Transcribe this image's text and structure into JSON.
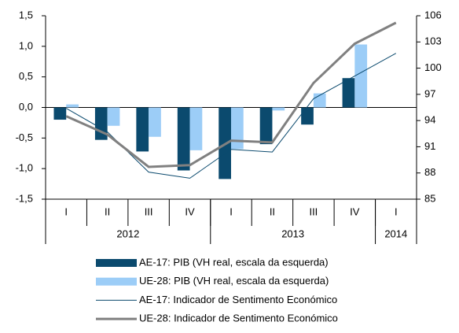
{
  "chart_data": {
    "type": "combo",
    "categories": [
      "I",
      "II",
      "III",
      "IV",
      "I",
      "II",
      "III",
      "IV",
      "I"
    ],
    "groups": [
      {
        "label": "2012",
        "count": 4
      },
      {
        "label": "2013",
        "count": 4
      },
      {
        "label": "2014",
        "count": 1
      }
    ],
    "ylim": [
      -1.5,
      1.5
    ],
    "yticks": [
      {
        "value": -1.5,
        "label": "-1,5"
      },
      {
        "value": -1.0,
        "label": "-1,0"
      },
      {
        "value": -0.5,
        "label": "-0,5"
      },
      {
        "value": 0,
        "label": "0,0"
      },
      {
        "value": 0.5,
        "label": "0,5"
      },
      {
        "value": 1.0,
        "label": "1,0"
      },
      {
        "value": 1.5,
        "label": "1,5"
      }
    ],
    "y2lim": [
      85,
      106
    ],
    "y2ticks": [
      85,
      88,
      91,
      94,
      97,
      100,
      103,
      106
    ],
    "series": [
      {
        "name": "AE-17: PIB (VH real, escala da esquerda)",
        "type": "bar",
        "color": "#0b4a6e",
        "values": [
          -0.2,
          -0.53,
          -0.72,
          -1.03,
          -1.17,
          -0.6,
          -0.28,
          0.48,
          null
        ]
      },
      {
        "name": "UE-28: PIB (VH real, escala da esquerda)",
        "type": "bar",
        "color": "#9ccdf7",
        "values": [
          0.05,
          -0.3,
          -0.48,
          -0.7,
          -0.68,
          -0.05,
          0.23,
          1.03,
          null
        ]
      },
      {
        "name": "AE-17: Indicador de Sentimento Económico",
        "type": "line",
        "axis": "y2",
        "color": "#0b4a6e",
        "width": 1,
        "values": [
          95.4,
          92.7,
          88.1,
          87.4,
          90.7,
          90.4,
          96.5,
          99.1,
          101.7
        ]
      },
      {
        "name": "UE-28: Indicador de Sentimento Económico",
        "type": "line",
        "axis": "y2",
        "color": "#808080",
        "width": 3,
        "values": [
          94.5,
          92.4,
          88.7,
          88.9,
          91.7,
          91.5,
          98.3,
          102.8,
          105.2
        ]
      }
    ]
  }
}
